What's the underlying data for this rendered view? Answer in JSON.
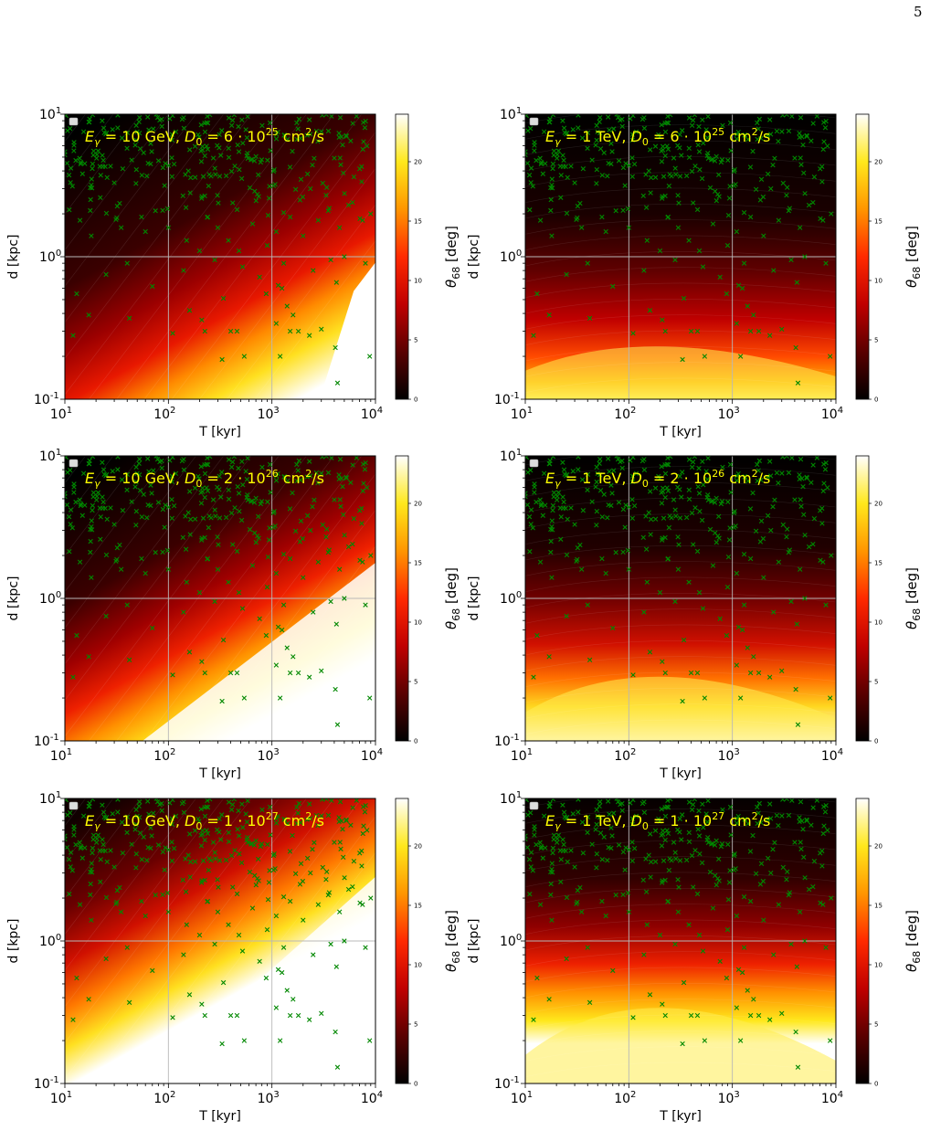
{
  "page": {
    "number": "5"
  },
  "colorbar": {
    "label": "θ68 [deg]",
    "ticks": [
      "0",
      "5",
      "10",
      "15",
      "20"
    ]
  },
  "axes_common": {
    "xlabel": "T [kyr]",
    "ylabel": "d [kpc]",
    "x_tick_labels": [
      "10^1",
      "10^2",
      "10^3",
      "10^4"
    ],
    "y_tick_labels": [
      "10^-1",
      "10^0",
      "10^1"
    ],
    "xlim": [
      10,
      10000
    ],
    "ylim": [
      0.1,
      10
    ],
    "xscale": "log",
    "yscale": "log",
    "grid": true
  },
  "colors": {
    "marker": "#008800",
    "title_text": "#ffff00",
    "colormap": [
      "#000000",
      "#5a0000",
      "#c00000",
      "#ff2a00",
      "#ff9600",
      "#ffe81c",
      "#ffffff"
    ]
  },
  "chart_data": [
    {
      "type": "heatmap",
      "panel": "top-left",
      "title_energy": "10 GeV",
      "title_d0": "6 · 10^25",
      "title": "Eγ = 10 GeV, D0 = 6 · 10^25 cm²/s",
      "xlabel": "T [kyr]",
      "ylabel": "d [kpc]",
      "xlim": [
        10,
        10000
      ],
      "ylim": [
        0.1,
        10
      ],
      "colorbar_range": [
        0,
        24
      ],
      "marker_series": "pulsars (green x)"
    },
    {
      "type": "heatmap",
      "panel": "top-right",
      "title_energy": "1 TeV",
      "title_d0": "6 · 10^25",
      "title": "Eγ = 1 TeV, D0 = 6 · 10^25 cm²/s",
      "xlabel": "T [kyr]",
      "ylabel": "d [kpc]",
      "xlim": [
        10,
        10000
      ],
      "ylim": [
        0.1,
        10
      ],
      "colorbar_range": [
        0,
        24
      ],
      "marker_series": "pulsars (green x)"
    },
    {
      "type": "heatmap",
      "panel": "middle-left",
      "title_energy": "10 GeV",
      "title_d0": "2 · 10^26",
      "title": "Eγ = 10 GeV, D0 = 2 · 10^26 cm²/s",
      "xlabel": "T [kyr]",
      "ylabel": "d [kpc]",
      "xlim": [
        10,
        10000
      ],
      "ylim": [
        0.1,
        10
      ],
      "colorbar_range": [
        0,
        24
      ],
      "marker_series": "pulsars (green x)"
    },
    {
      "type": "heatmap",
      "panel": "middle-right",
      "title_energy": "1 TeV",
      "title_d0": "2 · 10^26",
      "title": "Eγ = 1 TeV, D0 = 2 · 10^26 cm²/s",
      "xlabel": "T [kyr]",
      "ylabel": "d [kpc]",
      "xlim": [
        10,
        10000
      ],
      "ylim": [
        0.1,
        10
      ],
      "colorbar_range": [
        0,
        24
      ],
      "marker_series": "pulsars (green x)"
    },
    {
      "type": "heatmap",
      "panel": "bottom-left",
      "title_energy": "10 GeV",
      "title_d0": "1 · 10^27",
      "title": "Eγ = 10 GeV, D0 = 1 · 10^27 cm²/s",
      "xlabel": "T [kyr]",
      "ylabel": "d [kpc]",
      "xlim": [
        10,
        10000
      ],
      "ylim": [
        0.1,
        10
      ],
      "colorbar_range": [
        0,
        24
      ],
      "marker_series": "pulsars (green x)"
    },
    {
      "type": "heatmap",
      "panel": "bottom-right",
      "title_energy": "1 TeV",
      "title_d0": "1 · 10^27",
      "title": "Eγ = 1 TeV, D0 = 1 · 10^27 cm²/s",
      "xlabel": "T [kyr]",
      "ylabel": "d [kpc]",
      "xlim": [
        10,
        10000
      ],
      "ylim": [
        0.1,
        10
      ],
      "colorbar_range": [
        0,
        24
      ],
      "marker_series": "pulsars (green x)"
    }
  ],
  "pulsars_low_d": [
    [
      12,
      0.28
    ],
    [
      17,
      0.39
    ],
    [
      42,
      0.37
    ],
    [
      110,
      0.29
    ],
    [
      160,
      0.42
    ],
    [
      210,
      0.36
    ],
    [
      225,
      0.3
    ],
    [
      340,
      0.51
    ],
    [
      330,
      0.19
    ],
    [
      400,
      0.3
    ],
    [
      460,
      0.3
    ],
    [
      540,
      0.2
    ],
    [
      880,
      0.55
    ],
    [
      1100,
      0.34
    ],
    [
      1200,
      0.2
    ],
    [
      1250,
      0.6
    ],
    [
      1400,
      0.45
    ],
    [
      1500,
      0.3
    ],
    [
      1600,
      0.39
    ],
    [
      1800,
      0.3
    ],
    [
      2300,
      0.28
    ],
    [
      3000,
      0.31
    ],
    [
      4100,
      0.23
    ],
    [
      4300,
      0.13
    ],
    [
      8800,
      0.2
    ],
    [
      4200,
      0.66
    ],
    [
      1150,
      0.63
    ],
    [
      5500,
      2.3
    ]
  ],
  "pulsars_mid_d": [
    [
      14,
      1.8
    ],
    [
      18,
      1.4
    ],
    [
      22,
      2.6
    ],
    [
      30,
      3.3
    ],
    [
      35,
      1.6
    ],
    [
      55,
      1.9
    ],
    [
      60,
      1.5
    ],
    [
      75,
      2.1
    ],
    [
      100,
      1.6
    ],
    [
      150,
      1.3
    ],
    [
      200,
      1.1
    ],
    [
      240,
      1.9
    ],
    [
      300,
      1.6
    ],
    [
      380,
      1.3
    ],
    [
      480,
      1.1
    ],
    [
      650,
      1.7
    ],
    [
      900,
      1.2
    ],
    [
      1100,
      1.5
    ],
    [
      1500,
      1.9
    ],
    [
      2000,
      1.4
    ],
    [
      2800,
      1.8
    ],
    [
      3500,
      2.1
    ],
    [
      4500,
      1.6
    ],
    [
      6000,
      2.4
    ],
    [
      7500,
      1.8
    ],
    [
      9000,
      2.0
    ],
    [
      13,
      0.55
    ],
    [
      25,
      0.75
    ],
    [
      40,
      0.9
    ],
    [
      70,
      0.62
    ],
    [
      140,
      0.8
    ],
    [
      280,
      0.95
    ],
    [
      520,
      0.85
    ],
    [
      760,
      0.72
    ],
    [
      1300,
      0.9
    ],
    [
      2500,
      0.8
    ],
    [
      3700,
      0.95
    ],
    [
      5000,
      1.0
    ],
    [
      8000,
      0.9
    ]
  ]
}
